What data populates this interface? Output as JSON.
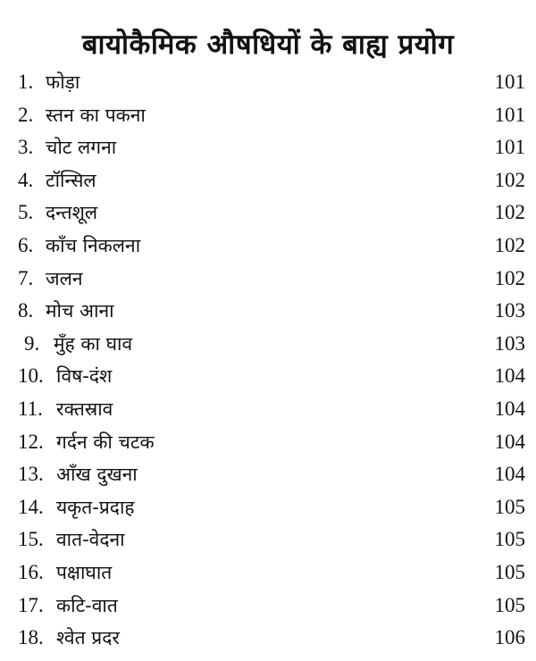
{
  "title": "बायोकैमिक औषधियों के बाह्य प्रयोग",
  "entries": [
    {
      "num": "1.",
      "label": "फोड़ा",
      "page": "101"
    },
    {
      "num": "2.",
      "label": "स्तन का पकना",
      "page": "101"
    },
    {
      "num": "3.",
      "label": "चोट लगना",
      "page": "101"
    },
    {
      "num": "4.",
      "label": "टॉन्सिल",
      "page": "102"
    },
    {
      "num": "5.",
      "label": "दन्तशूल",
      "page": "102"
    },
    {
      "num": "6.",
      "label": "काँच निकलना",
      "page": "102"
    },
    {
      "num": "7.",
      "label": "जलन",
      "page": "102"
    },
    {
      "num": "8.",
      "label": "मोच आना",
      "page": "103"
    },
    {
      "num": "9.",
      "label": "मुँह का घाव",
      "page": "103"
    },
    {
      "num": "10.",
      "label": "विष-दंश",
      "page": "104"
    },
    {
      "num": "11.",
      "label": "रक्तस्राव",
      "page": "104"
    },
    {
      "num": "12.",
      "label": "गर्दन की चटक",
      "page": "104"
    },
    {
      "num": "13.",
      "label": "आँख दुखना",
      "page": "104"
    },
    {
      "num": "14.",
      "label": "यकृत-प्रदाह",
      "page": "105"
    },
    {
      "num": "15.",
      "label": "वात-वेदना",
      "page": "105"
    },
    {
      "num": "16.",
      "label": "पक्षाघात",
      "page": "105"
    },
    {
      "num": "17.",
      "label": "कटि-वात",
      "page": "105"
    },
    {
      "num": "18.",
      "label": "श्वेत प्रदर",
      "page": "106"
    }
  ]
}
